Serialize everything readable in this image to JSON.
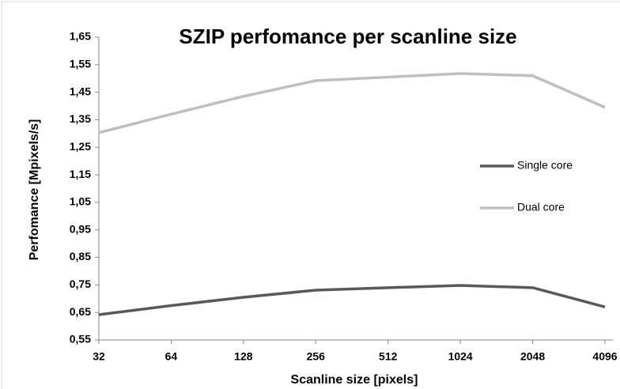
{
  "chart_data": {
    "type": "line",
    "title": "SZIP perfomance per scanline size",
    "x_label": "Scanline size [pixels]",
    "y_label": "Perfomance [Mpixels/s]",
    "categories": [
      "32",
      "64",
      "128",
      "256",
      "512",
      "1024",
      "2048",
      "4096"
    ],
    "series": [
      {
        "name": "Single core",
        "color": "#595959",
        "values": [
          0.642,
          0.675,
          0.705,
          0.731,
          0.74,
          0.748,
          0.74,
          0.67
        ]
      },
      {
        "name": "Dual core",
        "color": "#bfbfbf",
        "values": [
          1.303,
          1.37,
          1.435,
          1.492,
          1.505,
          1.518,
          1.51,
          1.395
        ]
      }
    ],
    "ylim": [
      0.55,
      1.65
    ],
    "yticks": [
      {
        "value": 0.55,
        "label": "0,55"
      },
      {
        "value": 0.65,
        "label": "0,65"
      },
      {
        "value": 0.75,
        "label": "0,75"
      },
      {
        "value": 0.85,
        "label": "0,85"
      },
      {
        "value": 0.95,
        "label": "0,95"
      },
      {
        "value": 1.05,
        "label": "1,05"
      },
      {
        "value": 1.15,
        "label": "1,15"
      },
      {
        "value": 1.25,
        "label": "1,25"
      },
      {
        "value": 1.35,
        "label": "1,35"
      },
      {
        "value": 1.45,
        "label": "1,45"
      },
      {
        "value": 1.55,
        "label": "1,55"
      },
      {
        "value": 1.65,
        "label": "1,65"
      }
    ],
    "grid": false,
    "legend": "right"
  }
}
